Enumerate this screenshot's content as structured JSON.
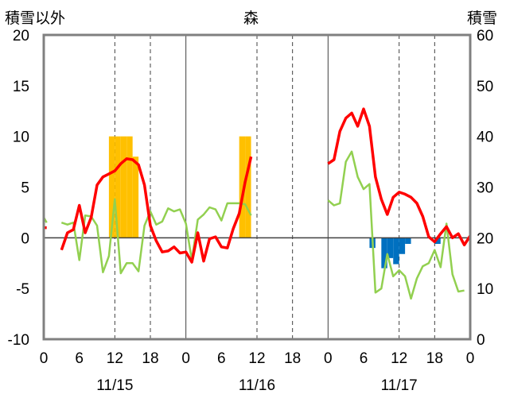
{
  "chart_data": {
    "type": "bar+line",
    "title": "森",
    "left_axis_label": "積雪以外",
    "right_axis_label": "積雪",
    "left_ylim": [
      -10,
      20
    ],
    "left_ticks": [
      "20",
      "15",
      "10",
      "5",
      "0",
      "-5",
      "-10"
    ],
    "right_ylim": [
      0,
      60
    ],
    "right_ticks": [
      "60",
      "50",
      "40",
      "30",
      "20",
      "10",
      "0"
    ],
    "x_range_hours": [
      0,
      72
    ],
    "x_tick_labels": [
      "0",
      "6",
      "12",
      "18",
      "0",
      "6",
      "12",
      "18",
      "0",
      "6",
      "12",
      "18",
      "0"
    ],
    "date_labels": [
      "11/15",
      "11/16",
      "11/17"
    ],
    "grid": "dashed vertical lines at 12 and 18 h of each day; solid line at each day boundary; solid zero line",
    "colors": {
      "temperature": "#ff0000",
      "green_series": "#92d050",
      "bars_orange": "#ffc000",
      "bars_blue": "#0070c0",
      "purple_line": "#7030a0",
      "frame": "#808080"
    },
    "red_line": [
      [
        [
          0,
          1
        ],
        [
          0.5,
          1
        ]
      ],
      [
        [
          3,
          -1.2
        ],
        [
          4,
          0.5
        ],
        [
          5,
          0.8
        ],
        [
          6,
          3.2
        ],
        [
          7,
          0.5
        ],
        [
          8,
          2
        ],
        [
          9,
          5.2
        ],
        [
          10,
          6
        ],
        [
          11,
          6.3
        ],
        [
          12,
          6.6
        ],
        [
          13,
          7.3
        ],
        [
          14,
          7.8
        ],
        [
          15,
          7.7
        ],
        [
          16,
          7.2
        ],
        [
          17,
          5.2
        ],
        [
          18,
          1.2
        ],
        [
          19,
          -0.3
        ],
        [
          20,
          -1.4
        ],
        [
          21,
          -1.3
        ],
        [
          22,
          -0.9
        ],
        [
          23,
          -1.5
        ],
        [
          24,
          -1.4
        ],
        [
          25,
          -2.4
        ],
        [
          26,
          0.5
        ],
        [
          27,
          -2.3
        ],
        [
          28,
          -0.1
        ],
        [
          29,
          0.1
        ],
        [
          30,
          -0.9
        ],
        [
          31,
          -1
        ],
        [
          32,
          0.9
        ],
        [
          33,
          2.4
        ],
        [
          34,
          5.5
        ],
        [
          35,
          8
        ]
      ],
      [
        [
          48,
          7.3
        ],
        [
          49,
          7.7
        ],
        [
          50,
          10.5
        ],
        [
          51,
          11.8
        ],
        [
          52,
          12.3
        ],
        [
          53,
          11
        ],
        [
          54,
          12.7
        ],
        [
          55,
          11
        ],
        [
          56,
          6
        ],
        [
          57,
          3.8
        ],
        [
          58,
          2.3
        ],
        [
          59,
          4
        ],
        [
          60,
          4.5
        ],
        [
          61,
          4.3
        ],
        [
          62,
          4
        ],
        [
          63,
          3.4
        ],
        [
          64,
          2.1
        ],
        [
          65,
          0.1
        ],
        [
          66,
          -0.4
        ],
        [
          67,
          0.4
        ],
        [
          68,
          1.1
        ],
        [
          69,
          0
        ],
        [
          70,
          0.4
        ],
        [
          71,
          -0.7
        ],
        [
          72,
          0.2
        ]
      ]
    ],
    "green_line": [
      [
        [
          0,
          2
        ],
        [
          0.5,
          1.5
        ]
      ],
      [
        [
          3,
          1.5
        ],
        [
          4,
          1.3
        ],
        [
          5,
          1.5
        ],
        [
          6,
          -2.2
        ],
        [
          7,
          2.2
        ],
        [
          8,
          2.1
        ],
        [
          9,
          1.2
        ],
        [
          10,
          -3.4
        ],
        [
          11,
          -1.8
        ],
        [
          12,
          3.8
        ],
        [
          13,
          -3.5
        ],
        [
          14,
          -2.5
        ],
        [
          15,
          -2.5
        ],
        [
          16,
          -3.3
        ],
        [
          17,
          1.2
        ],
        [
          18,
          2.6
        ],
        [
          19,
          1.3
        ],
        [
          20,
          1.6
        ],
        [
          21,
          2.9
        ],
        [
          22,
          2.6
        ],
        [
          23,
          2.8
        ],
        [
          24,
          1.4
        ],
        [
          25,
          -2.2
        ],
        [
          26,
          1.8
        ],
        [
          27,
          2.3
        ],
        [
          28,
          3
        ],
        [
          29,
          2.8
        ],
        [
          30,
          1.7
        ],
        [
          31,
          3.4
        ],
        [
          32,
          3.4
        ],
        [
          33,
          3.4
        ],
        [
          34,
          3.3
        ],
        [
          35,
          2.2
        ]
      ],
      [
        [
          48,
          3.7
        ],
        [
          49,
          3.2
        ],
        [
          50,
          3.4
        ],
        [
          51,
          7.5
        ],
        [
          52,
          8.5
        ],
        [
          53,
          6
        ],
        [
          54,
          4.8
        ],
        [
          55,
          5.3
        ],
        [
          56,
          -5.4
        ],
        [
          57,
          -5
        ],
        [
          58,
          -1.6
        ],
        [
          59,
          -3.8
        ],
        [
          60,
          -3.2
        ],
        [
          61,
          -3.8
        ],
        [
          62,
          -6
        ],
        [
          63,
          -4
        ],
        [
          64,
          -2.8
        ],
        [
          65,
          -2.5
        ],
        [
          66,
          -1.2
        ],
        [
          67,
          -2.9
        ],
        [
          68,
          1.4
        ],
        [
          69,
          -3.6
        ],
        [
          70,
          -5.3
        ],
        [
          71,
          -5.2
        ]
      ]
    ],
    "orange_bars": [
      [
        11,
        10
      ],
      [
        12,
        10
      ],
      [
        13,
        10
      ],
      [
        14,
        10
      ],
      [
        15,
        8
      ],
      [
        33,
        10
      ],
      [
        34,
        10
      ]
    ],
    "blue_bars": [
      [
        55,
        -1
      ],
      [
        57,
        -3
      ],
      [
        58,
        -2
      ],
      [
        59,
        -2.6
      ],
      [
        60,
        -1.6
      ],
      [
        61,
        -0.6
      ],
      [
        66,
        -0.6
      ]
    ],
    "purple_line_value": -10
  }
}
